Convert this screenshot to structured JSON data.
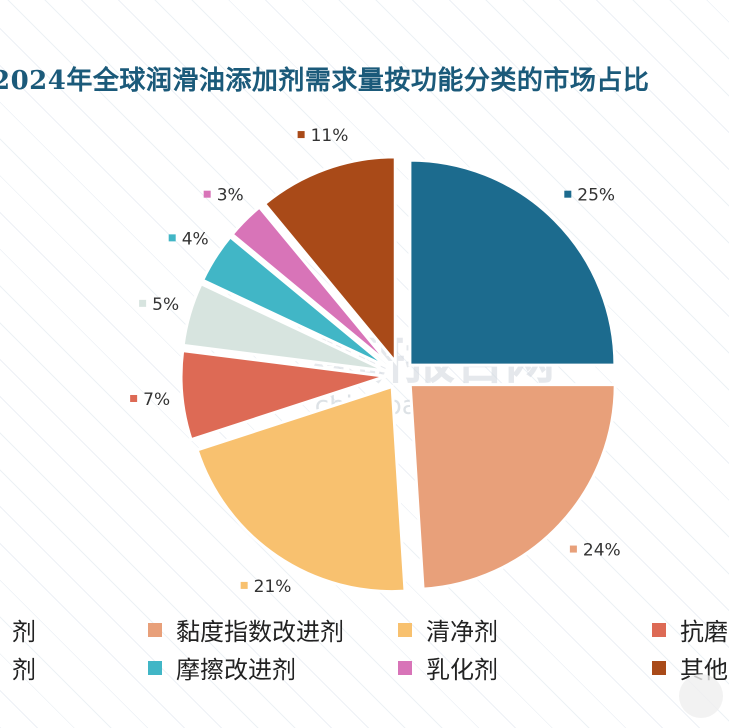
{
  "title": "2024年全球润滑油添加剂需求量按功能分类的市场占比",
  "watermark": {
    "text_cn": "观研报告网",
    "text_en": "chinabaogao.com"
  },
  "chart_data": {
    "type": "pie",
    "title": "2024年全球润滑油添加剂需求量按功能分类的市场占比",
    "slices": [
      {
        "name": "",
        "value": 25,
        "label": "25%",
        "color": "#1c6b8e"
      },
      {
        "name": "黏度指数改进剂",
        "value": 24,
        "label": "24%",
        "color": "#e8a07a"
      },
      {
        "name": "清净剂",
        "value": 21,
        "label": "21%",
        "color": "#f8c16f"
      },
      {
        "name": "抗磨",
        "value": 7,
        "label": "7%",
        "color": "#dd6a55"
      },
      {
        "name": "",
        "value": 5,
        "label": "5%",
        "color": "#d7e4df"
      },
      {
        "name": "摩擦改进剂",
        "value": 4,
        "label": "4%",
        "color": "#41b6c6"
      },
      {
        "name": "乳化剂",
        "value": 3,
        "label": "3%",
        "color": "#d874b8"
      },
      {
        "name": "其他",
        "value": 11,
        "label": "11%",
        "color": "#a94a18"
      }
    ],
    "legend_placement": "bottom"
  },
  "legend": [
    {
      "label": "剂",
      "color": "#1c6b8e"
    },
    {
      "label": "黏度指数改进剂",
      "color": "#e8a07a"
    },
    {
      "label": "清净剂",
      "color": "#f8c16f"
    },
    {
      "label": "抗磨",
      "color": "#dd6a55"
    },
    {
      "label": "剂",
      "color": "#d7e4df"
    },
    {
      "label": "摩擦改进剂",
      "color": "#41b6c6"
    },
    {
      "label": "乳化剂",
      "color": "#d874b8"
    },
    {
      "label": "其他",
      "color": "#a94a18"
    }
  ]
}
